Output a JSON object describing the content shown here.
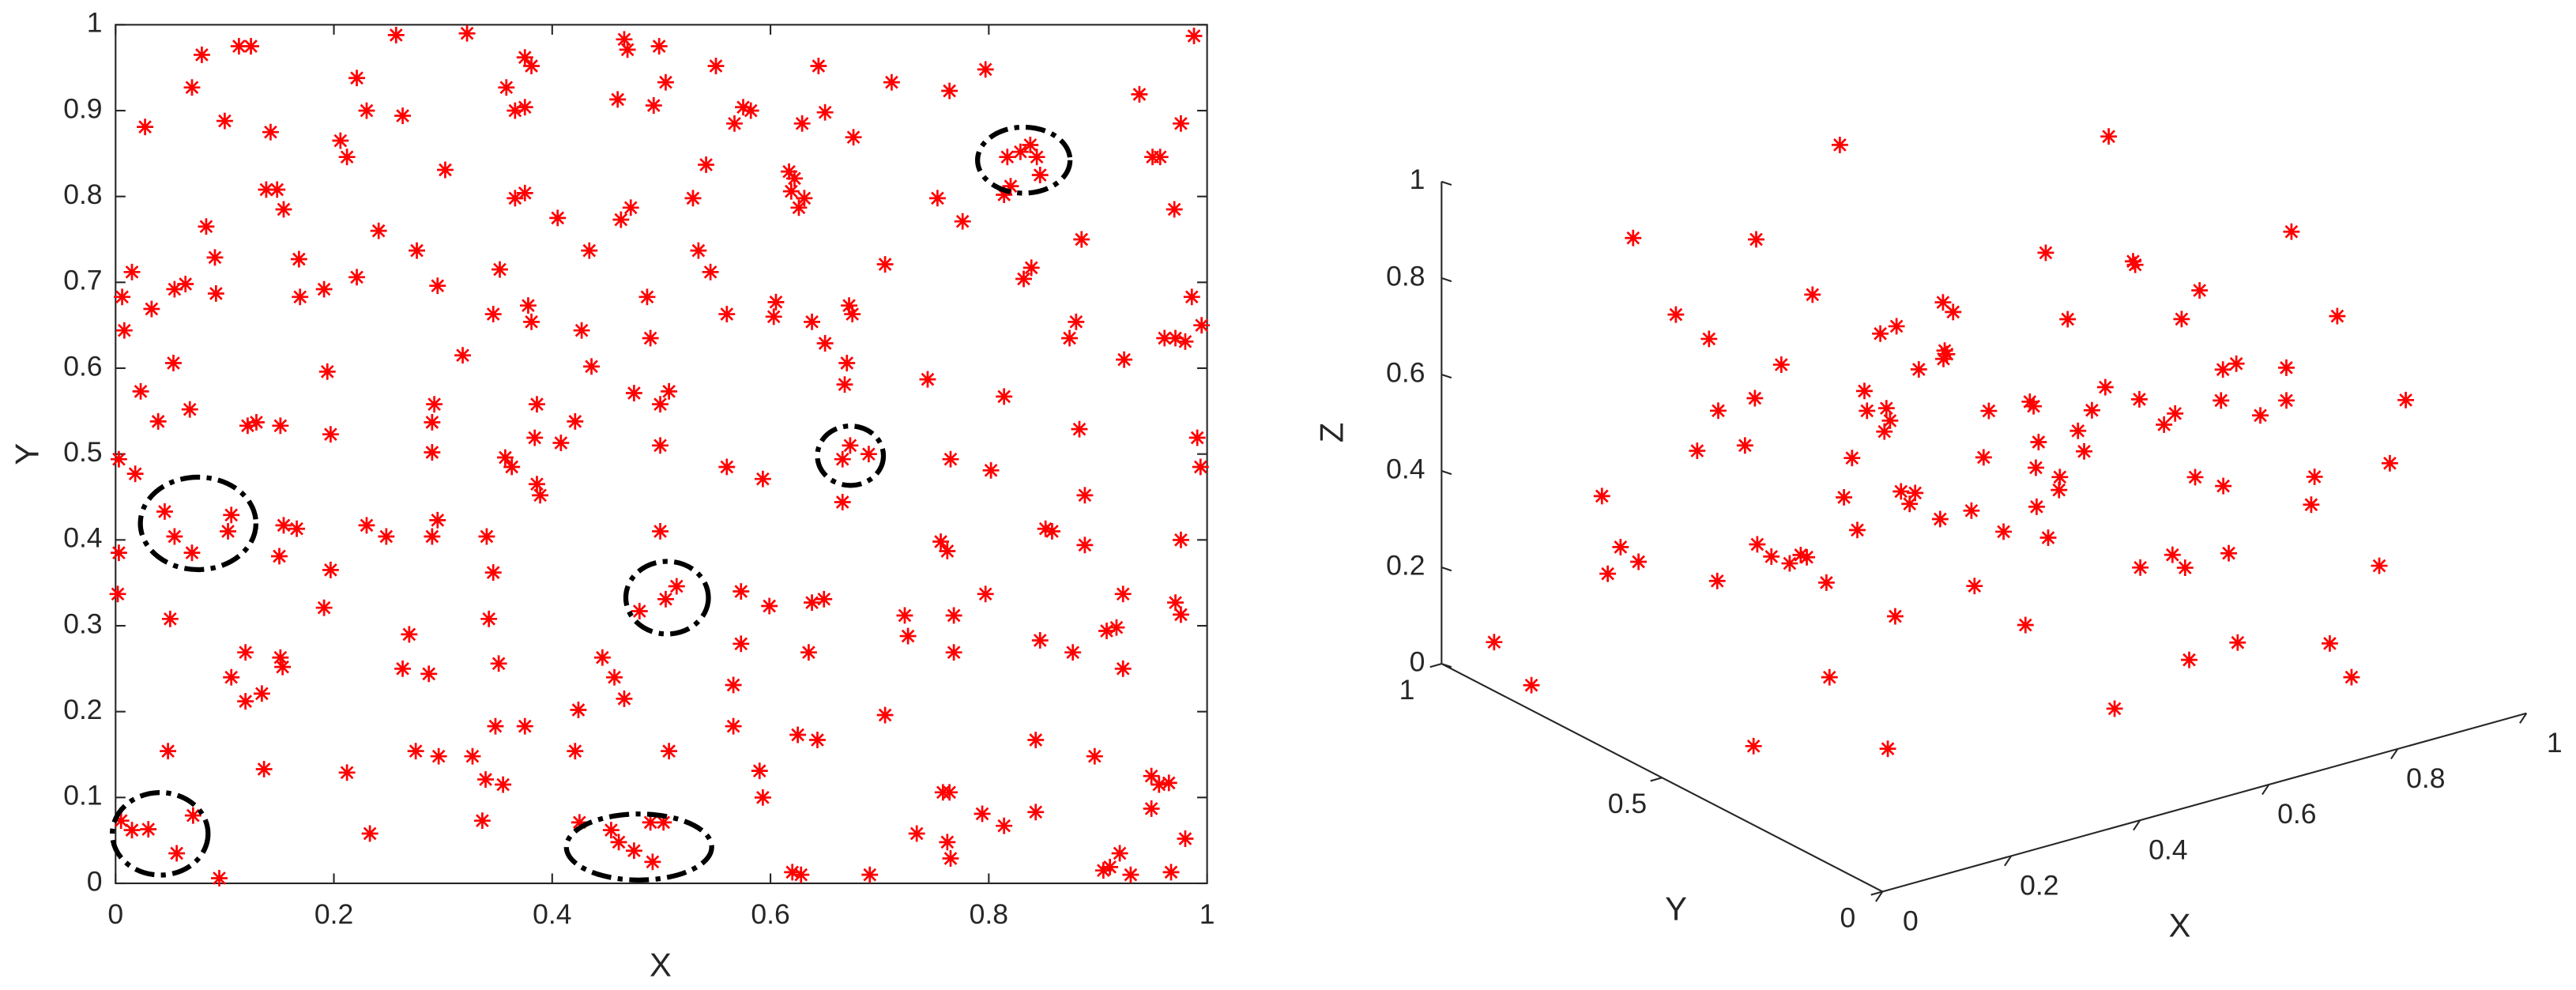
{
  "chart_data": [
    {
      "type": "scatter",
      "xlabel": "X",
      "ylabel": "Y",
      "color": "#ff0000",
      "marker": "*",
      "xlim": [
        0,
        1
      ],
      "ylim": [
        0,
        1
      ],
      "xticks": [
        0,
        0.2,
        0.4,
        0.6,
        0.8,
        1
      ],
      "yticks": [
        0,
        0.1,
        0.2,
        0.3,
        0.4,
        0.5,
        0.6,
        0.7,
        0.8,
        0.9,
        1
      ],
      "x": [
        0.027,
        0.079,
        0.113,
        0.124,
        0.07,
        0.1,
        0.015,
        0.006,
        0.033,
        0.054,
        0.064,
        0.083,
        0.091,
        0.092,
        0.008,
        0.023,
        0.053,
        0.039,
        0.068,
        0.003,
        0.018,
        0.045,
        0.054,
        0.07,
        0.103,
        0.106,
        0.003,
        0.002,
        0.05,
        0.048,
        0.005,
        0.015,
        0.03,
        0.056,
        0.071,
        0.095,
        0.106,
        0.119,
        0.119,
        0.134,
        0.136,
        0.121,
        0.129,
        0.151,
        0.154,
        0.166,
        0.15,
        0.138,
        0.148,
        0.154,
        0.142,
        0.168,
        0.169,
        0.191,
        0.151,
        0.153,
        0.194,
        0.197,
        0.197,
        0.191,
        0.206,
        0.212,
        0.221,
        0.23,
        0.241,
        0.221,
        0.212,
        0.233,
        0.23,
        0.248,
        0.263,
        0.269,
        0.276,
        0.257,
        0.263,
        0.302,
        0.295,
        0.322,
        0.292,
        0.29,
        0.29,
        0.295,
        0.29,
        0.287,
        0.275,
        0.296,
        0.318,
        0.327,
        0.339,
        0.336,
        0.342,
        0.34,
        0.346,
        0.346,
        0.352,
        0.358,
        0.348,
        0.375,
        0.351,
        0.355,
        0.357,
        0.363,
        0.384,
        0.366,
        0.375,
        0.366,
        0.375,
        0.375,
        0.381,
        0.378,
        0.381,
        0.386,
        0.386,
        0.389,
        0.405,
        0.408,
        0.421,
        0.421,
        0.424,
        0.427,
        0.436,
        0.434,
        0.457,
        0.446,
        0.466,
        0.466,
        0.469,
        0.46,
        0.472,
        0.463,
        0.475,
        0.487,
        0.49,
        0.498,
        0.493,
        0.504,
        0.49,
        0.502,
        0.454,
        0.461,
        0.475,
        0.492,
        0.425,
        0.48,
        0.504,
        0.514,
        0.499,
        0.499,
        0.507,
        0.499,
        0.507,
        0.529,
        0.541,
        0.55,
        0.534,
        0.545,
        0.567,
        0.575,
        0.582,
        0.56,
        0.593,
        0.56,
        0.573,
        0.599,
        0.573,
        0.566,
        0.566,
        0.59,
        0.593,
        0.605,
        0.603,
        0.617,
        0.622,
        0.619,
        0.631,
        0.626,
        0.629,
        0.644,
        0.65,
        0.625,
        0.643,
        0.628,
        0.62,
        0.638,
        0.65,
        0.638,
        0.649,
        0.635,
        0.666,
        0.673,
        0.69,
        0.666,
        0.675,
        0.672,
        0.67,
        0.668,
        0.705,
        0.676,
        0.711,
        0.705,
        0.691,
        0.723,
        0.726,
        0.744,
        0.765,
        0.753,
        0.764,
        0.776,
        0.734,
        0.758,
        0.764,
        0.762,
        0.765,
        0.768,
        0.768,
        0.756,
        0.762,
        0.794,
        0.843,
        0.814,
        0.797,
        0.802,
        0.814,
        0.797,
        0.814,
        0.817,
        0.829,
        0.838,
        0.844,
        0.847,
        0.839,
        0.832,
        0.82,
        0.843,
        0.847,
        0.852,
        0.858,
        0.874,
        0.88,
        0.885,
        0.888,
        0.883,
        0.877,
        0.888,
        0.897,
        0.905,
        0.911,
        0.908,
        0.917,
        0.92,
        0.93,
        0.923,
        0.924,
        0.938,
        0.95,
        0.957,
        0.949,
        0.956,
        0.965,
        0.949,
        0.961,
        0.971,
        0.98,
        0.97,
        0.976,
        0.988,
        0.986,
        0.995,
        0.991,
        0.994,
        0.971,
        0.976,
        0.98,
        0.967,
        0.976,
        0.923
      ],
      "y": [
        0.881,
        0.965,
        0.975,
        0.975,
        0.927,
        0.888,
        0.712,
        0.683,
        0.669,
        0.692,
        0.698,
        0.765,
        0.729,
        0.687,
        0.644,
        0.573,
        0.606,
        0.538,
        0.552,
        0.494,
        0.477,
        0.433,
        0.404,
        0.385,
        0.41,
        0.429,
        0.385,
        0.337,
        0.308,
        0.154,
        0.073,
        0.062,
        0.063,
        0.035,
        0.079,
        0.006,
        0.24,
        0.269,
        0.212,
        0.221,
        0.133,
        0.533,
        0.537,
        0.533,
        0.417,
        0.413,
        0.381,
        0.808,
        0.808,
        0.785,
        0.875,
        0.727,
        0.683,
        0.692,
        0.263,
        0.252,
        0.596,
        0.523,
        0.365,
        0.321,
        0.865,
        0.846,
        0.938,
        0.9,
        0.76,
        0.706,
        0.129,
        0.058,
        0.417,
        0.404,
        0.25,
        0.29,
        0.737,
        0.988,
        0.894,
        0.831,
        0.696,
        0.99,
        0.558,
        0.537,
        0.502,
        0.423,
        0.404,
        0.244,
        0.154,
        0.148,
        0.615,
        0.148,
        0.121,
        0.073,
        0.308,
        0.404,
        0.362,
        0.663,
        0.715,
        0.927,
        0.183,
        0.183,
        0.256,
        0.115,
        0.496,
        0.485,
        0.519,
        0.798,
        0.804,
        0.9,
        0.904,
        0.962,
        0.952,
        0.673,
        0.654,
        0.558,
        0.465,
        0.452,
        0.775,
        0.513,
        0.538,
        0.154,
        0.202,
        0.644,
        0.602,
        0.737,
        0.24,
        0.263,
        0.215,
        0.983,
        0.971,
        0.913,
        0.787,
        0.773,
        0.571,
        0.683,
        0.635,
        0.975,
        0.906,
        0.933,
        0.071,
        0.071,
        0.062,
        0.048,
        0.038,
        0.025,
        0.071,
        0.317,
        0.331,
        0.346,
        0.558,
        0.51,
        0.573,
        0.41,
        0.154,
        0.798,
        0.837,
        0.952,
        0.737,
        0.712,
        0.885,
        0.904,
        0.9,
        0.485,
        0.471,
        0.663,
        0.34,
        0.323,
        0.279,
        0.231,
        0.183,
        0.131,
        0.1,
        0.677,
        0.66,
        0.829,
        0.821,
        0.806,
        0.798,
        0.787,
        0.885,
        0.952,
        0.898,
        0.173,
        0.167,
        0.01,
        0.013,
        0.654,
        0.629,
        0.327,
        0.331,
        0.269,
        0.494,
        0.51,
        0.5,
        0.444,
        0.663,
        0.673,
        0.606,
        0.581,
        0.721,
        0.869,
        0.933,
        0.196,
        0.01,
        0.312,
        0.288,
        0.587,
        0.494,
        0.798,
        0.923,
        0.771,
        0.058,
        0.106,
        0.106,
        0.048,
        0.029,
        0.269,
        0.312,
        0.398,
        0.387,
        0.081,
        0.083,
        0.067,
        0.337,
        0.481,
        0.567,
        0.948,
        0.802,
        0.846,
        0.852,
        0.86,
        0.846,
        0.825,
        0.717,
        0.704,
        0.812,
        0.167,
        0.283,
        0.413,
        0.41,
        0.635,
        0.654,
        0.75,
        0.452,
        0.529,
        0.269,
        0.394,
        0.148,
        0.015,
        0.019,
        0.294,
        0.298,
        0.035,
        0.01,
        0.25,
        0.61,
        0.919,
        0.846,
        0.846,
        0.125,
        0.115,
        0.117,
        0.087,
        0.635,
        0.635,
        0.631,
        0.785,
        0.885,
        0.987,
        0.683,
        0.65,
        0.519,
        0.485,
        0.327,
        0.313,
        0.052,
        0.013,
        0.4,
        0.337
      ]
    },
    {
      "type": "scatter3d",
      "xlabel": "X",
      "ylabel": "Y",
      "zlabel": "Z",
      "color": "#ff0000",
      "marker": "*",
      "xlim": [
        0,
        1
      ],
      "ylim": [
        0,
        1
      ],
      "zlim": [
        0,
        1
      ],
      "xticks": [
        0,
        0.2,
        0.4,
        0.6,
        0.8,
        1
      ],
      "yticks": [
        0,
        0.5,
        1
      ],
      "zticks": [
        0,
        0.2,
        0.4,
        0.6,
        0.8,
        1
      ],
      "x": [
        0.12,
        0.85,
        0.43,
        0.67,
        0.29,
        0.91,
        0.05,
        0.56,
        0.74,
        0.38,
        0.18,
        0.63,
        0.97,
        0.24,
        0.49,
        0.81,
        0.33,
        0.02,
        0.71,
        0.58,
        0.15,
        0.88,
        0.46,
        0.27,
        0.93,
        0.64,
        0.09,
        0.52,
        0.36,
        0.78,
        0.21,
        0.69,
        0.44,
        0.99,
        0.31,
        0.06,
        0.76,
        0.55,
        0.13,
        0.84,
        0.41,
        0.26,
        0.95,
        0.6,
        0.19,
        0.72,
        0.35,
        0.87,
        0.08,
        0.5,
        0.66,
        0.23,
        0.8,
        0.39,
        0.03,
        0.57,
        0.92,
        0.28,
        0.47,
        0.75,
        0.14,
        0.62,
        0.34,
        0.89,
        0.45,
        0.2,
        0.7,
        0.53,
        0.11,
        0.83,
        0.37,
        0.96,
        0.25,
        0.61,
        0.04,
        0.48,
        0.79,
        0.3,
        0.68,
        0.16,
        0.9,
        0.42,
        0.59,
        0.22,
        0.73,
        0.01,
        0.54,
        0.86,
        0.32,
        0.65,
        0.1,
        0.77,
        0.4,
        0.94,
        0.17,
        0.51,
        0.82,
        0.27,
        0.7,
        0.44
      ],
      "y": [
        0.55,
        0.21,
        0.88,
        0.34,
        0.71,
        0.62,
        0.13,
        0.47,
        0.95,
        0.08,
        0.39,
        0.76,
        0.29,
        0.58,
        0.02,
        0.67,
        0.44,
        0.91,
        0.18,
        0.83,
        0.26,
        0.5,
        0.64,
        0.07,
        0.79,
        0.35,
        0.6,
        0.97,
        0.15,
        0.42,
        0.86,
        0.24,
        0.73,
        0.53,
        0.11,
        0.38,
        0.69,
        0.9,
        0.31,
        0.04,
        0.57,
        0.8,
        0.46,
        0.19,
        0.65,
        0.99,
        0.27,
        0.12,
        0.74,
        0.36,
        0.61,
        0.93,
        0.49,
        0.22,
        0.84,
        0.03,
        0.68,
        0.4,
        0.16,
        0.59,
        0.77,
        0.1,
        0.89,
        0.32,
        0.52,
        0.28,
        0.05,
        0.7,
        0.45,
        0.81,
        0.14,
        0.63,
        0.37,
        0.96,
        0.23,
        0.56,
        0.09,
        0.75,
        0.42,
        0.87,
        0.3,
        0.17,
        0.66,
        0.48,
        0.92,
        0.2,
        0.58,
        0.34,
        0.01,
        0.72,
        0.43,
        0.85,
        0.25,
        0.6,
        0.11,
        0.78,
        0.54,
        0.39,
        0.94,
        0.06
      ],
      "z": [
        0.34,
        0.78,
        0.12,
        0.56,
        0.91,
        0.23,
        0.67,
        0.45,
        0.05,
        0.82,
        0.39,
        0.61,
        0.18,
        0.73,
        0.29,
        0.95,
        0.5,
        0.08,
        0.64,
        0.37,
        0.86,
        0.14,
        0.7,
        0.42,
        0.59,
        0.27,
        0.88,
        0.03,
        0.53,
        0.76,
        0.2,
        0.65,
        0.31,
        0.47,
        0.84,
        0.1,
        0.58,
        0.92,
        0.25,
        0.69,
        0.15,
        0.44,
        0.8,
        0.36,
        0.62,
        0.07,
        0.74,
        0.51,
        0.28,
        0.97,
        0.4,
        0.19,
        0.66,
        0.55,
        0.02,
        0.87,
        0.33,
        0.71,
        0.13,
        0.49,
        0.94,
        0.24,
        0.6,
        0.38,
        0.81,
        0.09,
        0.52,
        0.3,
        0.77,
        0.17,
        0.63,
        0.43,
        0.89,
        0.22,
        0.57,
        0.68,
        0.11,
        0.46,
        0.85,
        0.35,
        0.04,
        0.72,
        0.26,
        0.93,
        0.41,
        0.6,
        0.16,
        0.54,
        0.79,
        0.32,
        0.48,
        0.06,
        0.75,
        0.21,
        0.99,
        0.44,
        0.14,
        0.67,
        0.38,
        0.83
      ]
    }
  ]
}
